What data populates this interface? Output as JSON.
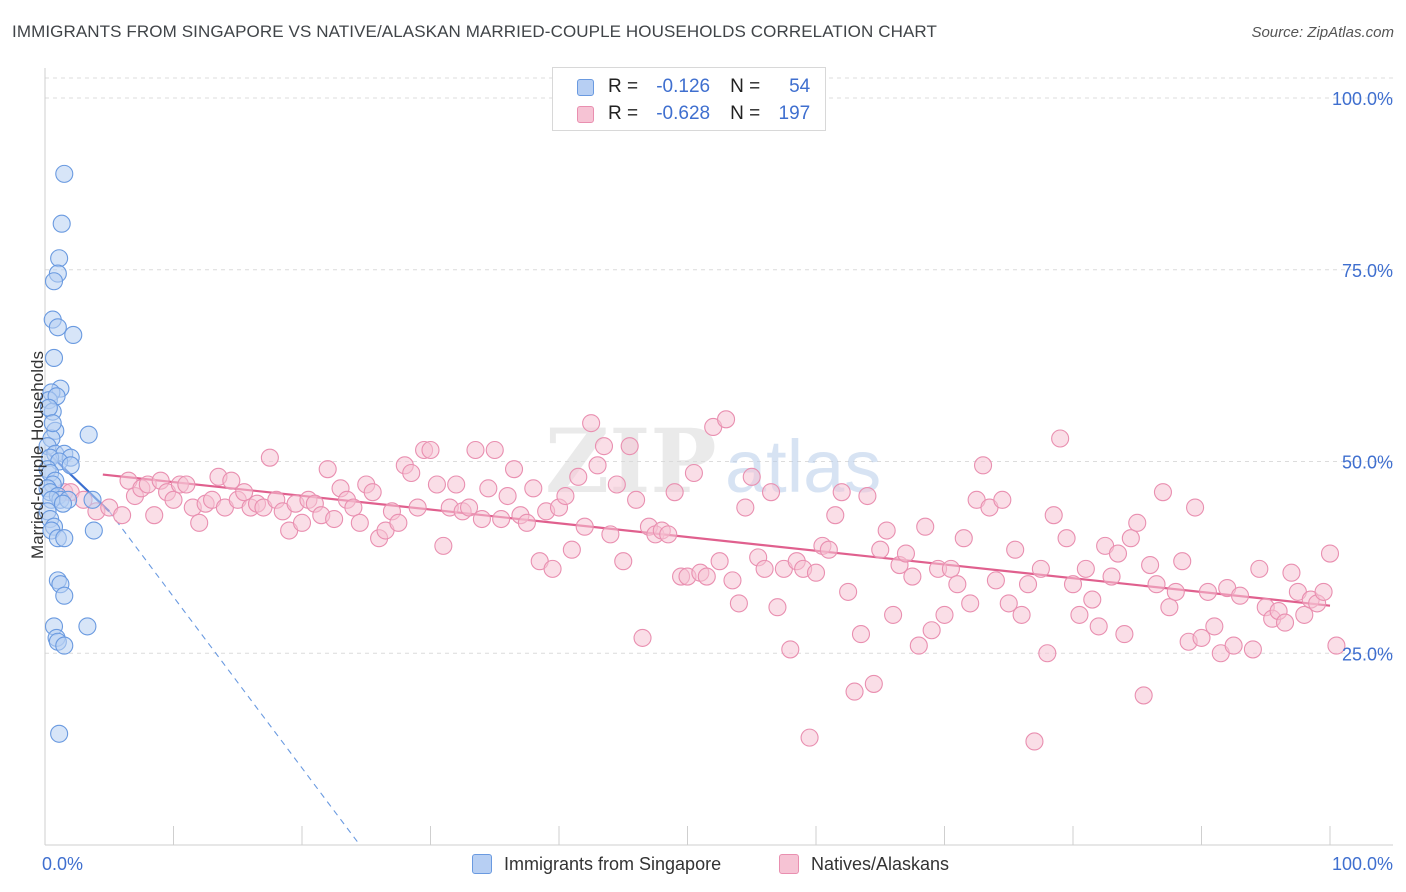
{
  "title": "IMMIGRANTS FROM SINGAPORE VS NATIVE/ALASKAN MARRIED-COUPLE HOUSEHOLDS CORRELATION CHART",
  "source": "Source: ZipAtlas.com",
  "watermark": {
    "zip": "ZIP",
    "atlas": "atlas"
  },
  "legend": {
    "r_label": "R =",
    "n_label": "N =",
    "series": [
      {
        "r": "-0.126",
        "n": "54"
      },
      {
        "r": "-0.628",
        "n": "197"
      }
    ]
  },
  "colors": {
    "blue_fill": "#b7cff3",
    "blue_stroke": "#6a9ae0",
    "blue_line": "#3b6fd0",
    "pink_fill": "#f6c3d4",
    "pink_stroke": "#e98fb0",
    "pink_line": "#e0608e",
    "axis_text": "#3f6fcf",
    "grid": "#dcdcdc"
  },
  "chart_data": {
    "type": "scatter",
    "title": "IMMIGRANTS FROM SINGAPORE VS NATIVE/ALASKAN MARRIED-COUPLE HOUSEHOLDS CORRELATION CHART",
    "xlabel": "",
    "ylabel": "Married-couple Households",
    "xlim": [
      0,
      100
    ],
    "ylim": [
      0,
      100
    ],
    "x_tick_labels": [
      "0.0%",
      "100.0%"
    ],
    "y_ticks": [
      {
        "value": 100,
        "label": "100.0%"
      },
      {
        "value": 75,
        "label": "75.0%"
      },
      {
        "value": 50,
        "label": "50.0%"
      },
      {
        "value": 25,
        "label": "25.0%"
      }
    ],
    "series": [
      {
        "name": "Immigrants from Singapore",
        "r": -0.126,
        "n": 54,
        "trend_solid": [
          [
            0,
            51.5
          ],
          [
            5,
            43.5
          ]
        ],
        "trend_dashed": [
          [
            5,
            43.5
          ],
          [
            24.5,
            0
          ]
        ],
        "points": [
          [
            1.5,
            87.5
          ],
          [
            1.3,
            81
          ],
          [
            1.1,
            76.5
          ],
          [
            1,
            74.5
          ],
          [
            0.7,
            73.5
          ],
          [
            0.6,
            68.5
          ],
          [
            1,
            67.5
          ],
          [
            2.2,
            66.5
          ],
          [
            0.7,
            63.5
          ],
          [
            1.2,
            59.5
          ],
          [
            0.5,
            59
          ],
          [
            0.3,
            58
          ],
          [
            0.9,
            58.5
          ],
          [
            0.6,
            56.5
          ],
          [
            3.4,
            53.5
          ],
          [
            0.8,
            54
          ],
          [
            0.5,
            53
          ],
          [
            0.2,
            52
          ],
          [
            0.8,
            51
          ],
          [
            1.5,
            51
          ],
          [
            2,
            50.5
          ],
          [
            0.4,
            50.5
          ],
          [
            1.1,
            50
          ],
          [
            2,
            49.5
          ],
          [
            0.2,
            49
          ],
          [
            0.4,
            48.5
          ],
          [
            0.8,
            47.5
          ],
          [
            0.6,
            47
          ],
          [
            0.2,
            46.5
          ],
          [
            0.4,
            46
          ],
          [
            1,
            45.5
          ],
          [
            1.2,
            45
          ],
          [
            0.5,
            45
          ],
          [
            1.8,
            45
          ],
          [
            3.7,
            45
          ],
          [
            1.4,
            44.5
          ],
          [
            0.2,
            43.5
          ],
          [
            0.4,
            42.5
          ],
          [
            0.7,
            41.5
          ],
          [
            3.8,
            41
          ],
          [
            0.5,
            41
          ],
          [
            1,
            40
          ],
          [
            1.5,
            40
          ],
          [
            1,
            34.5
          ],
          [
            1.2,
            34
          ],
          [
            1.5,
            32.5
          ],
          [
            0.7,
            28.5
          ],
          [
            3.3,
            28.5
          ],
          [
            0.9,
            27
          ],
          [
            1,
            26.5
          ],
          [
            1.5,
            26
          ],
          [
            1.1,
            14.5
          ],
          [
            0.3,
            57
          ],
          [
            0.6,
            55
          ]
        ]
      },
      {
        "name": "Natives/Alaskans",
        "r": -0.628,
        "n": 197,
        "trend": [
          [
            4.5,
            48.3
          ],
          [
            100,
            31.2
          ]
        ],
        "points": [
          [
            1.5,
            46
          ],
          [
            2,
            46
          ],
          [
            3,
            45
          ],
          [
            4,
            43.5
          ],
          [
            5,
            44
          ],
          [
            6,
            43
          ],
          [
            6.5,
            47.5
          ],
          [
            7,
            45.5
          ],
          [
            7.5,
            46.5
          ],
          [
            8,
            47
          ],
          [
            8.5,
            43
          ],
          [
            9,
            47.5
          ],
          [
            9.5,
            46
          ],
          [
            10,
            45
          ],
          [
            10.5,
            47
          ],
          [
            11,
            47
          ],
          [
            11.5,
            44
          ],
          [
            12,
            42
          ],
          [
            12.5,
            44.5
          ],
          [
            13,
            45
          ],
          [
            13.5,
            48
          ],
          [
            14,
            44
          ],
          [
            14.5,
            47.5
          ],
          [
            15,
            45
          ],
          [
            15.5,
            46
          ],
          [
            16,
            44
          ],
          [
            16.5,
            44.5
          ],
          [
            17,
            44
          ],
          [
            17.5,
            50.5
          ],
          [
            18,
            45
          ],
          [
            18.5,
            43.5
          ],
          [
            19,
            41
          ],
          [
            19.5,
            44.5
          ],
          [
            20,
            42
          ],
          [
            20.5,
            45
          ],
          [
            21,
            44.5
          ],
          [
            21.5,
            43
          ],
          [
            22,
            49
          ],
          [
            22.5,
            42.5
          ],
          [
            23,
            46.5
          ],
          [
            23.5,
            45
          ],
          [
            24,
            44
          ],
          [
            24.5,
            42
          ],
          [
            25,
            47
          ],
          [
            25.5,
            46
          ],
          [
            26,
            40
          ],
          [
            26.5,
            41
          ],
          [
            27,
            43.5
          ],
          [
            27.5,
            42
          ],
          [
            28,
            49.5
          ],
          [
            28.5,
            48.5
          ],
          [
            29,
            44
          ],
          [
            29.5,
            51.5
          ],
          [
            30,
            51.5
          ],
          [
            30.5,
            47
          ],
          [
            31,
            39
          ],
          [
            31.5,
            44
          ],
          [
            32,
            47
          ],
          [
            32.5,
            43.5
          ],
          [
            33,
            44
          ],
          [
            33.5,
            51.5
          ],
          [
            34,
            42.5
          ],
          [
            34.5,
            46.5
          ],
          [
            35,
            51.5
          ],
          [
            35.5,
            42.5
          ],
          [
            36,
            45.5
          ],
          [
            36.5,
            49
          ],
          [
            37,
            43
          ],
          [
            37.5,
            42
          ],
          [
            38,
            46.5
          ],
          [
            38.5,
            37
          ],
          [
            39,
            43.5
          ],
          [
            39.5,
            36
          ],
          [
            40,
            44
          ],
          [
            40.5,
            45.5
          ],
          [
            41,
            38.5
          ],
          [
            41.5,
            48
          ],
          [
            42,
            41.5
          ],
          [
            42.5,
            55
          ],
          [
            43,
            49.5
          ],
          [
            43.5,
            52
          ],
          [
            44,
            40.5
          ],
          [
            44.5,
            47
          ],
          [
            45,
            37
          ],
          [
            45.5,
            52
          ],
          [
            46,
            45
          ],
          [
            46.5,
            27
          ],
          [
            47,
            41.5
          ],
          [
            47.5,
            40.5
          ],
          [
            48,
            41
          ],
          [
            48.5,
            40.5
          ],
          [
            49,
            46
          ],
          [
            49.5,
            35
          ],
          [
            50,
            35
          ],
          [
            50.5,
            48.5
          ],
          [
            51,
            35.5
          ],
          [
            51.5,
            35
          ],
          [
            52,
            54.5
          ],
          [
            52.5,
            37
          ],
          [
            53,
            55.5
          ],
          [
            53.5,
            34.5
          ],
          [
            54,
            31.5
          ],
          [
            54.5,
            44
          ],
          [
            55,
            48
          ],
          [
            55.5,
            37.5
          ],
          [
            56,
            36
          ],
          [
            56.5,
            46
          ],
          [
            57,
            31
          ],
          [
            57.5,
            36
          ],
          [
            58,
            25.5
          ],
          [
            58.5,
            37
          ],
          [
            59,
            36
          ],
          [
            59.5,
            14
          ],
          [
            60,
            35.5
          ],
          [
            60.5,
            39
          ],
          [
            61,
            38.5
          ],
          [
            61.5,
            43
          ],
          [
            62,
            46
          ],
          [
            62.5,
            33
          ],
          [
            63,
            20
          ],
          [
            63.5,
            27.5
          ],
          [
            64,
            45.5
          ],
          [
            64.5,
            21
          ],
          [
            65,
            38.5
          ],
          [
            65.5,
            41
          ],
          [
            66,
            30
          ],
          [
            66.5,
            36.5
          ],
          [
            67,
            38
          ],
          [
            67.5,
            35
          ],
          [
            68,
            26
          ],
          [
            68.5,
            41.5
          ],
          [
            69,
            28
          ],
          [
            69.5,
            36
          ],
          [
            70,
            30
          ],
          [
            70.5,
            36
          ],
          [
            71,
            34
          ],
          [
            71.5,
            40
          ],
          [
            72,
            31.5
          ],
          [
            72.5,
            45
          ],
          [
            73,
            49.5
          ],
          [
            73.5,
            44
          ],
          [
            74,
            34.5
          ],
          [
            74.5,
            45
          ],
          [
            75,
            31.5
          ],
          [
            75.5,
            38.5
          ],
          [
            76,
            30
          ],
          [
            76.5,
            34
          ],
          [
            77,
            13.5
          ],
          [
            77.5,
            36
          ],
          [
            78,
            25
          ],
          [
            78.5,
            43
          ],
          [
            79,
            53
          ],
          [
            79.5,
            40
          ],
          [
            80,
            34
          ],
          [
            80.5,
            30
          ],
          [
            81,
            36
          ],
          [
            81.5,
            32
          ],
          [
            82,
            28.5
          ],
          [
            82.5,
            39
          ],
          [
            83,
            35
          ],
          [
            83.5,
            38
          ],
          [
            84,
            27.5
          ],
          [
            84.5,
            40
          ],
          [
            85,
            42
          ],
          [
            85.5,
            19.5
          ],
          [
            86,
            36.5
          ],
          [
            86.5,
            34
          ],
          [
            87,
            46
          ],
          [
            87.5,
            31
          ],
          [
            88,
            33
          ],
          [
            88.5,
            37
          ],
          [
            89,
            26.5
          ],
          [
            89.5,
            44
          ],
          [
            90,
            27
          ],
          [
            90.5,
            33
          ],
          [
            91,
            28.5
          ],
          [
            91.5,
            25
          ],
          [
            92,
            33.5
          ],
          [
            92.5,
            26
          ],
          [
            93,
            32.5
          ],
          [
            94,
            25.5
          ],
          [
            94.5,
            36
          ],
          [
            95,
            31
          ],
          [
            95.5,
            29.5
          ],
          [
            96,
            30.5
          ],
          [
            96.5,
            29
          ],
          [
            97,
            35.5
          ],
          [
            97.5,
            33
          ],
          [
            98,
            30
          ],
          [
            98.5,
            32
          ],
          [
            99,
            31.5
          ],
          [
            99.5,
            33
          ],
          [
            100,
            38
          ],
          [
            100.5,
            26
          ]
        ]
      }
    ]
  }
}
